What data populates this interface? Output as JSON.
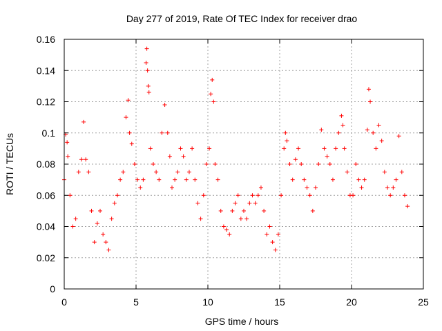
{
  "chart_data": {
    "type": "scatter",
    "title": "Day 277 of 2019, Rate Of TEC Index for receiver drao",
    "xlabel": "GPS time / hours",
    "ylabel": "ROTI / TECUs",
    "xlim": [
      0,
      25
    ],
    "ylim": [
      0,
      0.16
    ],
    "xticks": [
      "0",
      "5",
      "10",
      "15",
      "20",
      "25"
    ],
    "yticks": [
      "0",
      "0.02",
      "0.04",
      "0.06",
      "0.08",
      "0.1",
      "0.12",
      "0.14",
      "0.16"
    ],
    "grid": true,
    "marker": "+",
    "color": "#ff0000",
    "series": [
      {
        "x": [
          0.0,
          0.1,
          0.2,
          0.25,
          0.4,
          0.6,
          0.8,
          1.0,
          1.2,
          1.35,
          1.5,
          1.7,
          1.9,
          2.1,
          2.3,
          2.5,
          2.7,
          2.9,
          3.1,
          3.3,
          3.5,
          3.7,
          3.9,
          4.1,
          4.3,
          4.45,
          4.55,
          4.7,
          4.9,
          5.1,
          5.3,
          5.5,
          5.7,
          5.75,
          5.8,
          5.85,
          5.9,
          6.0,
          6.2,
          6.4,
          6.6,
          6.8,
          7.0,
          7.2,
          7.35,
          7.5,
          7.7,
          7.9,
          8.1,
          8.3,
          8.5,
          8.7,
          8.9,
          9.1,
          9.3,
          9.5,
          9.7,
          9.9,
          10.1,
          10.2,
          10.3,
          10.4,
          10.5,
          10.7,
          10.9,
          11.1,
          11.3,
          11.5,
          11.7,
          11.9,
          12.1,
          12.3,
          12.5,
          12.7,
          12.9,
          13.1,
          13.3,
          13.5,
          13.7,
          13.9,
          14.1,
          14.3,
          14.5,
          14.7,
          14.9,
          15.1,
          15.3,
          15.4,
          15.5,
          15.7,
          15.9,
          16.1,
          16.3,
          16.5,
          16.7,
          16.9,
          17.1,
          17.3,
          17.5,
          17.7,
          17.9,
          18.1,
          18.3,
          18.5,
          18.7,
          18.9,
          19.1,
          19.3,
          19.4,
          19.5,
          19.7,
          19.9,
          20.1,
          20.3,
          20.5,
          20.7,
          20.9,
          21.1,
          21.2,
          21.3,
          21.5,
          21.7,
          21.9,
          22.1,
          22.3,
          22.5,
          22.7,
          22.9,
          23.1,
          23.3,
          23.5,
          23.7,
          23.9
        ],
        "y": [
          0.07,
          0.099,
          0.094,
          0.085,
          0.06,
          0.04,
          0.045,
          0.075,
          0.083,
          0.107,
          0.083,
          0.075,
          0.05,
          0.03,
          0.042,
          0.05,
          0.035,
          0.03,
          0.025,
          0.045,
          0.055,
          0.06,
          0.07,
          0.075,
          0.11,
          0.121,
          0.1,
          0.093,
          0.08,
          0.07,
          0.065,
          0.07,
          0.145,
          0.154,
          0.14,
          0.13,
          0.126,
          0.09,
          0.08,
          0.075,
          0.07,
          0.1,
          0.118,
          0.1,
          0.085,
          0.065,
          0.07,
          0.075,
          0.09,
          0.085,
          0.07,
          0.075,
          0.09,
          0.07,
          0.055,
          0.045,
          0.06,
          0.08,
          0.09,
          0.125,
          0.134,
          0.12,
          0.08,
          0.07,
          0.05,
          0.04,
          0.038,
          0.035,
          0.05,
          0.055,
          0.06,
          0.045,
          0.05,
          0.045,
          0.055,
          0.06,
          0.055,
          0.06,
          0.065,
          0.05,
          0.035,
          0.04,
          0.03,
          0.025,
          0.035,
          0.06,
          0.09,
          0.1,
          0.095,
          0.08,
          0.07,
          0.083,
          0.09,
          0.08,
          0.07,
          0.065,
          0.06,
          0.05,
          0.065,
          0.08,
          0.102,
          0.09,
          0.085,
          0.08,
          0.07,
          0.09,
          0.1,
          0.111,
          0.105,
          0.09,
          0.075,
          0.06,
          0.06,
          0.08,
          0.07,
          0.065,
          0.07,
          0.102,
          0.128,
          0.12,
          0.1,
          0.09,
          0.105,
          0.095,
          0.075,
          0.065,
          0.06,
          0.065,
          0.07,
          0.098,
          0.075,
          0.06,
          0.053
        ]
      }
    ]
  }
}
